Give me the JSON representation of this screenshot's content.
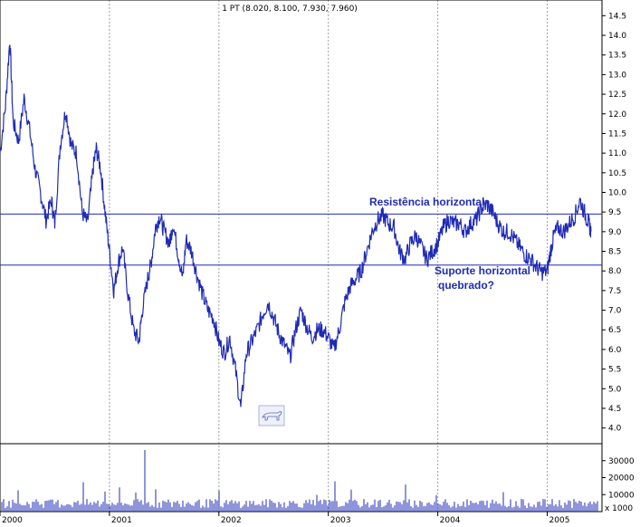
{
  "chart_data": {
    "type": "line",
    "title": "1 PT (8.020, 8.100, 7.930, 7.960)",
    "x_labels": [
      "2000",
      "2001",
      "2002",
      "2003",
      "2004",
      "2005"
    ],
    "y_ticks": [
      "4.0",
      "4.5",
      "5.0",
      "5.5",
      "6.0",
      "6.5",
      "7.0",
      "7.5",
      "8.0",
      "8.5",
      "9.0",
      "9.5",
      "10.0",
      "10.5",
      "11.0",
      "11.5",
      "12.0",
      "12.5",
      "13.0",
      "13.5",
      "14.0",
      "14.5"
    ],
    "ylim": [
      3.6,
      14.9
    ],
    "xlim": [
      2000.0,
      2005.5
    ],
    "price_series": {
      "name": "",
      "x": [
        2000.0,
        2000.05,
        2000.09,
        2000.12,
        2000.17,
        2000.22,
        2000.27,
        2000.32,
        2000.37,
        2000.42,
        2000.47,
        2000.5,
        2000.55,
        2000.6,
        2000.65,
        2000.7,
        2000.75,
        2000.8,
        2000.85,
        2000.88,
        2000.92,
        2000.96,
        2001.0,
        2001.04,
        2001.08,
        2001.12,
        2001.17,
        2001.22,
        2001.27,
        2001.3,
        2001.35,
        2001.38,
        2001.42,
        2001.46,
        2001.5,
        2001.55,
        2001.58,
        2001.63,
        2001.67,
        2001.7,
        2001.75,
        2001.8,
        2001.85,
        2001.9,
        2001.95,
        2002.0,
        2002.05,
        2002.1,
        2002.15,
        2002.2,
        2002.25,
        2002.3,
        2002.35,
        2002.4,
        2002.45,
        2002.5,
        2002.55,
        2002.6,
        2002.65,
        2002.7,
        2002.75,
        2002.8,
        2002.85,
        2002.9,
        2002.95,
        2003.0,
        2003.05,
        2003.1,
        2003.15,
        2003.2,
        2003.25,
        2003.3,
        2003.35,
        2003.4,
        2003.45,
        2003.5,
        2003.55,
        2003.6,
        2003.65,
        2003.7,
        2003.75,
        2003.8,
        2003.85,
        2003.9,
        2003.95,
        2004.0,
        2004.05,
        2004.1,
        2004.15,
        2004.2,
        2004.25,
        2004.3,
        2004.35,
        2004.4,
        2004.45,
        2004.5,
        2004.55,
        2004.6,
        2004.65,
        2004.7,
        2004.75,
        2004.8,
        2004.85,
        2004.9,
        2004.95,
        2005.0,
        2005.03,
        2005.06,
        2005.1,
        2005.15,
        2005.2,
        2005.25,
        2005.3,
        2005.35,
        2005.38,
        2005.4
      ],
      "y": [
        11.0,
        12.2,
        13.9,
        11.8,
        11.3,
        12.4,
        11.6,
        10.6,
        10.0,
        9.3,
        9.8,
        9.2,
        11.2,
        12.1,
        11.2,
        11.0,
        9.5,
        9.2,
        10.6,
        11.1,
        10.6,
        9.5,
        8.5,
        7.5,
        8.2,
        8.6,
        7.4,
        6.5,
        6.2,
        7.0,
        7.8,
        8.2,
        9.1,
        9.4,
        9.0,
        8.7,
        9.2,
        8.4,
        7.8,
        8.8,
        8.5,
        7.9,
        7.4,
        7.0,
        6.8,
        6.2,
        5.9,
        6.3,
        5.5,
        4.5,
        5.9,
        6.2,
        6.5,
        6.9,
        7.2,
        6.8,
        6.4,
        6.1,
        5.8,
        6.5,
        7.0,
        6.6,
        6.3,
        6.5,
        6.5,
        6.3,
        6.0,
        6.5,
        7.2,
        7.6,
        7.8,
        8.0,
        8.5,
        9.0,
        9.3,
        9.4,
        9.2,
        9.1,
        8.5,
        8.3,
        8.7,
        8.9,
        8.6,
        8.3,
        8.5,
        8.7,
        9.1,
        9.3,
        9.2,
        9.2,
        9.0,
        9.2,
        9.3,
        9.6,
        9.7,
        9.5,
        9.2,
        9.0,
        9.0,
        8.8,
        8.6,
        8.4,
        8.3,
        8.1,
        7.96,
        8.0,
        8.5,
        8.9,
        9.1,
        9.0,
        9.2,
        9.4,
        9.8,
        9.4,
        9.2,
        9.0
      ]
    },
    "volume_ticks": [
      "10000",
      "20000",
      "30000"
    ],
    "volume_scale_label": "x 1000",
    "support_level": 8.15,
    "resistance_level": 9.45,
    "annotations": {
      "resistance": "Resistência horizontal",
      "support_line1": "Suporte horizontal",
      "support_line2": "quebrado?"
    },
    "colors": {
      "price_line": "#1f2bb5",
      "support_resistance": "#1f2bb5",
      "grid": "#9aa0a6",
      "volume_bars": "#1f2bb5",
      "annotation": "#1f2bb5"
    },
    "grid": true
  }
}
